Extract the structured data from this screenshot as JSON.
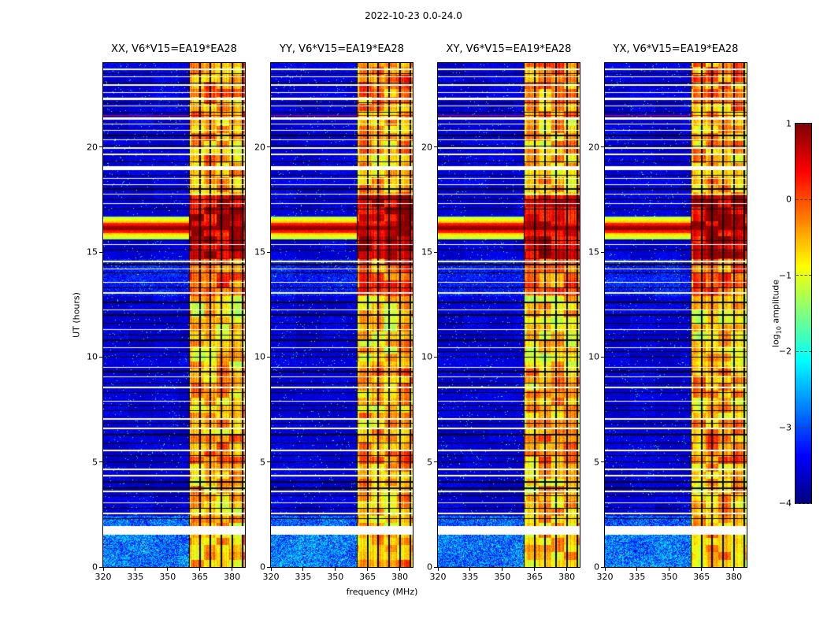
{
  "chart_data": {
    "type": "heatmap",
    "title": "2022-10-23 0.0-24.0",
    "panels": [
      {
        "title": "XX, V6*V15=EA19*EA28",
        "seed": 11
      },
      {
        "title": "YY, V6*V15=EA19*EA28",
        "seed": 22
      },
      {
        "title": "XY, V6*V15=EA19*EA28",
        "seed": 33
      },
      {
        "title": "YX, V6*V15=EA19*EA28",
        "seed": 44
      }
    ],
    "xlabel": "frequency (MHz)",
    "ylabel": "UT (hours)",
    "x_range_mhz": [
      320,
      386
    ],
    "y_range_hours": [
      0,
      24
    ],
    "x_ticks": [
      320,
      335,
      350,
      365,
      380
    ],
    "y_ticks": [
      0,
      5,
      10,
      15,
      20
    ],
    "colormap": "jet",
    "colorbar": {
      "label_prefix": "log",
      "label_sub": "10",
      "label_suffix": " amplitude",
      "ticks": [
        "1",
        "0",
        "−1",
        "−2",
        "−3",
        "−4"
      ],
      "vmin": -4,
      "vmax": 1
    },
    "features": {
      "background_log_amp": -3.55,
      "rfi_band_mhz": [
        360,
        386
      ],
      "rfi_channel_separators_mhz": [
        360,
        365,
        370,
        375,
        380,
        385
      ],
      "burst": {
        "time_ut": 16.15,
        "core_halfwidth_h": 0.1,
        "peak_log_amp": 0.9
      },
      "red_line_times_ut": [
        21.5
      ],
      "white_gap_intervals_ut": [
        [
          1.55,
          1.95
        ],
        [
          18.9,
          19.1
        ],
        [
          21.3,
          21.42
        ],
        [
          22.25,
          22.35
        ]
      ],
      "white_line_times_ut": [
        2.55,
        3.05,
        3.6,
        4.35,
        4.65,
        5.55,
        6.6,
        7.05,
        7.9,
        8.55,
        9.05,
        9.5,
        10.45,
        11.3,
        12.25,
        13.05,
        13.55,
        14.2,
        14.55,
        15.35,
        17.3,
        17.75,
        18.2,
        18.5,
        19.65,
        19.95,
        20.35,
        20.8,
        21.1,
        21.95,
        22.6,
        22.95,
        23.35,
        23.7
      ],
      "black_line_times_ut": [
        2.3,
        2.8,
        3.4,
        3.75,
        4.05,
        5.0,
        5.3,
        5.9,
        6.3,
        6.85,
        7.45,
        7.7,
        8.3,
        8.75,
        9.3,
        10.0,
        10.25,
        10.8,
        11.05,
        11.6,
        12.0,
        12.6,
        13.3,
        14.0,
        14.4,
        15.1,
        15.55,
        17.05,
        17.5,
        18.0,
        18.65,
        19.3,
        20.05,
        20.55,
        21.65,
        22.1,
        23.05,
        23.5
      ],
      "elevated_broadband": [
        {
          "t": [
            0,
            1.55
          ],
          "boost": 0.9
        },
        {
          "t": [
            1.95,
            2.45
          ],
          "boost": 0.75
        },
        {
          "t": [
            12.9,
            14.65
          ],
          "boost": 0.3
        }
      ],
      "rfi_activity": [
        {
          "t": [
            0,
            1.55
          ],
          "boost": 0.55
        },
        {
          "t": [
            1.55,
            4.9
          ],
          "boost": 0.45
        },
        {
          "t": [
            4.9,
            6.3
          ],
          "boost": 0.75
        },
        {
          "t": [
            6.3,
            8.3
          ],
          "boost": 0.5
        },
        {
          "t": [
            8.3,
            9.6
          ],
          "boost": 0.6
        },
        {
          "t": [
            9.6,
            12.9
          ],
          "boost": 0.35
        },
        {
          "t": [
            12.9,
            14.65
          ],
          "boost": 0.95
        },
        {
          "t": [
            14.65,
            17.7
          ],
          "boost": 1.7
        },
        {
          "t": [
            17.7,
            19.2
          ],
          "boost": 0.5
        },
        {
          "t": [
            19.2,
            21.3
          ],
          "boost": 0.55
        },
        {
          "t": [
            21.3,
            22.4
          ],
          "boost": 0.65
        },
        {
          "t": [
            22.4,
            24.01
          ],
          "boost": 0.8
        }
      ]
    }
  }
}
